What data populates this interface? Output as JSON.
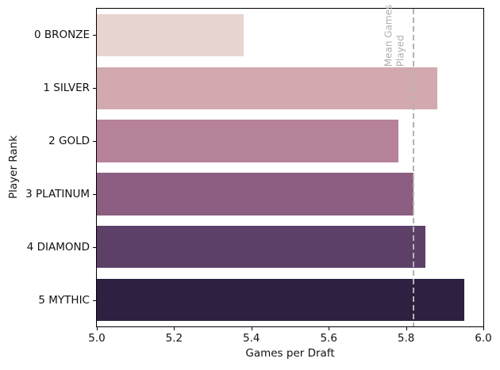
{
  "chart_data": {
    "type": "bar",
    "orientation": "horizontal",
    "title": "",
    "xlabel": "Games per Draft",
    "ylabel": "Player Rank",
    "categories": [
      "0 BRONZE",
      "1 SILVER",
      "2 GOLD",
      "3 PLATINUM",
      "4 DIAMOND",
      "5 MYTHIC"
    ],
    "values": [
      5.38,
      5.88,
      5.78,
      5.82,
      5.85,
      5.95
    ],
    "bar_colors": [
      "#e8d4ce",
      "#d2a9ae",
      "#b5829a",
      "#8c5e81",
      "#5c4067",
      "#2d2040"
    ],
    "xlim": [
      5.0,
      6.0
    ],
    "x_ticks": [
      5.0,
      5.2,
      5.4,
      5.6,
      5.8,
      6.0
    ],
    "x_tick_labels": [
      "5.0",
      "5.2",
      "5.4",
      "5.6",
      "5.8",
      "6.0"
    ],
    "grid": false,
    "legend": null,
    "mean_line": {
      "value": 5.82,
      "label_line1": "Mean Games",
      "label_line2": "Played",
      "line_color": "#b3b3b3",
      "label_color": "#aeaeae",
      "style": "dashed"
    }
  }
}
